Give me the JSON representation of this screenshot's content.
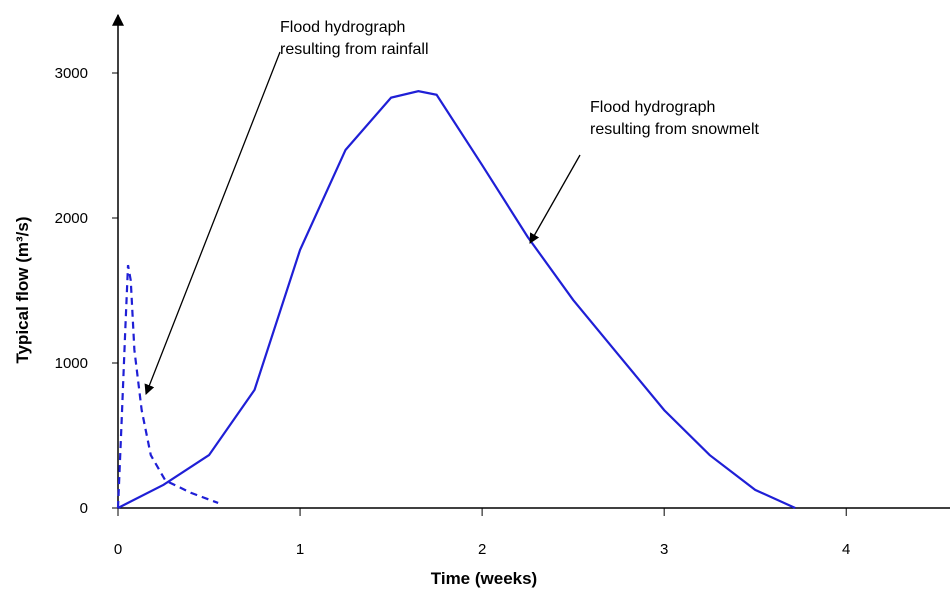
{
  "chart_data": {
    "type": "line",
    "xlabel": "Time (weeks)",
    "ylabel": "Typical flow (m³/s)",
    "xlim": [
      0,
      4.57
    ],
    "ylim": [
      0,
      3400
    ],
    "xticks": [
      0,
      1,
      2,
      3,
      4
    ],
    "yticks": [
      0,
      1000,
      2000,
      3000
    ],
    "series": [
      {
        "color": "#1f1fd6",
        "dashed": false,
        "x": [
          0,
          0.25,
          0.5,
          0.75,
          1.0,
          1.25,
          1.5,
          1.65,
          1.75,
          2.0,
          2.25,
          2.5,
          2.75,
          3.0,
          3.25,
          3.5,
          3.72
        ],
        "values": [
          0,
          160,
          365,
          815,
          1780,
          2470,
          2830,
          2875,
          2850,
          2365,
          1870,
          1435,
          1055,
          675,
          365,
          125,
          0
        ]
      },
      {
        "color": "#1f1fd6",
        "dashed": true,
        "x": [
          0,
          0.02,
          0.04,
          0.055,
          0.07,
          0.09,
          0.13,
          0.18,
          0.26,
          0.4,
          0.55
        ],
        "values": [
          0,
          600,
          1230,
          1675,
          1570,
          1090,
          675,
          365,
          190,
          105,
          35
        ]
      }
    ],
    "annotations": [
      {
        "lines": [
          "Flood hydrograph",
          "resulting from rainfall"
        ]
      },
      {
        "lines": [
          "Flood hydrograph",
          "resulting from snowmelt"
        ]
      }
    ]
  }
}
